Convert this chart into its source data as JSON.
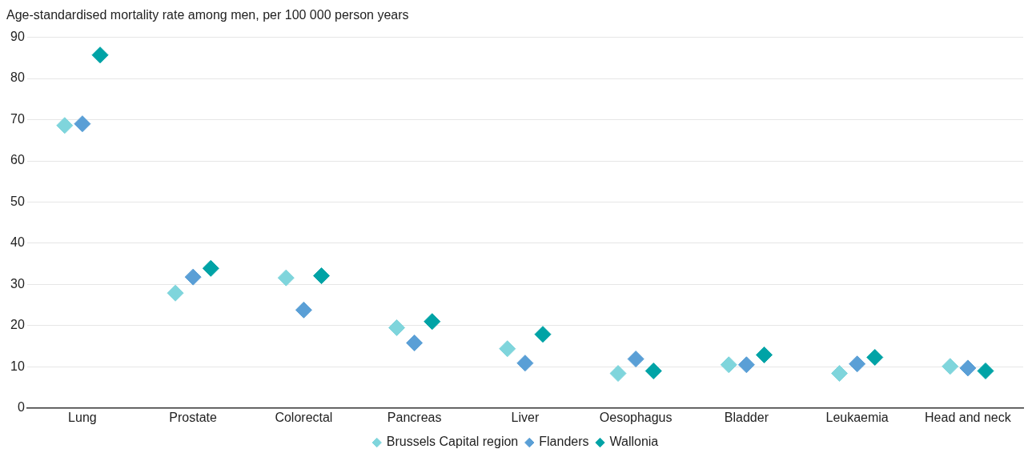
{
  "chart_data": {
    "type": "scatter",
    "title": "Age-standardised mortality rate among men, per 100 000 person years",
    "categories": [
      "Lung",
      "Prostate",
      "Colorectal",
      "Pancreas",
      "Liver",
      "Oesophagus",
      "Bladder",
      "Leukaemia",
      "Head and neck"
    ],
    "series": [
      {
        "name": "Brussels Capital region",
        "color": "#7fd5dc",
        "x": [
          "Lung",
          "Prostate",
          "Colorectal",
          "Pancreas",
          "Liver",
          "Oesophagus",
          "Bladder",
          "Leukaemia",
          "Head and neck"
        ],
        "values": [
          68.6,
          27.9,
          31.6,
          19.5,
          14.4,
          8.4,
          10.5,
          8.4,
          10.1
        ]
      },
      {
        "name": "Flanders",
        "color": "#5a9fd6",
        "x": [
          "Lung",
          "Prostate",
          "Colorectal",
          "Pancreas",
          "Liver",
          "Oesophagus",
          "Bladder",
          "Leukaemia",
          "Head and neck"
        ],
        "values": [
          69.0,
          31.8,
          23.8,
          15.8,
          10.9,
          11.9,
          10.5,
          10.7,
          9.7
        ]
      },
      {
        "name": "Wallonia",
        "color": "#00a3a6",
        "x": [
          "Lung",
          "Prostate",
          "Colorectal",
          "Pancreas",
          "Liver",
          "Oesophagus",
          "Bladder",
          "Leukaemia",
          "Head and neck"
        ],
        "values": [
          85.7,
          33.9,
          32.1,
          21.0,
          17.9,
          9.0,
          12.9,
          12.3,
          9.0
        ]
      }
    ],
    "ylim": [
      0,
      90
    ],
    "yticks": [
      0,
      10,
      20,
      30,
      40,
      50,
      60,
      70,
      80,
      90
    ],
    "grid": "y",
    "legend": "bottom",
    "marker": "diamond"
  }
}
